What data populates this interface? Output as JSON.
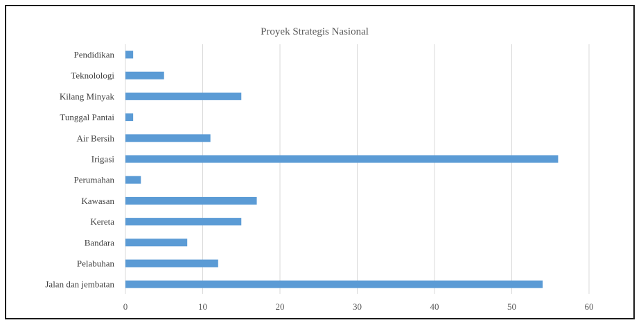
{
  "chart_data": {
    "type": "bar",
    "orientation": "horizontal",
    "title": "Proyek Strategis Nasional",
    "xlabel": "",
    "ylabel": "",
    "categories": [
      "Pendidikan",
      "Teknolologi",
      "Kilang Minyak",
      "Tunggal Pantai",
      "Air Bersih",
      "Irigasi",
      "Perumahan",
      "Kawasan",
      "Kereta",
      "Bandara",
      "Pelabuhan",
      "Jalan dan jembatan"
    ],
    "values": [
      1,
      5,
      15,
      1,
      11,
      56,
      2,
      17,
      15,
      8,
      12,
      54
    ],
    "xlim": [
      0,
      60
    ],
    "xticks": [
      0,
      10,
      20,
      30,
      40,
      50,
      60
    ],
    "grid": true,
    "legend": "none",
    "bar_color": "#5b9bd5"
  }
}
